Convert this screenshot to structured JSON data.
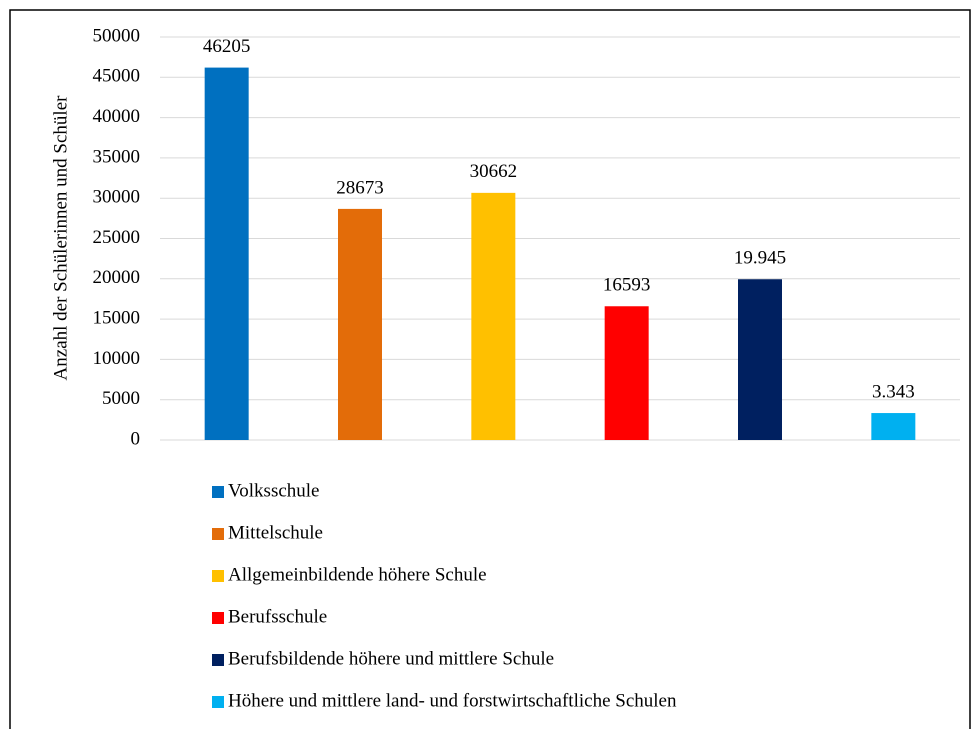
{
  "chart_data": {
    "type": "bar",
    "y_label": "Anzahl der Schülerinnen und Schüler",
    "series": [
      {
        "name": "Volksschule",
        "color": "#0070c0",
        "values": [
          46205
        ],
        "value_labels": [
          "46205"
        ]
      },
      {
        "name": "Mittelschule",
        "color": "#e36c09",
        "values": [
          28673
        ],
        "value_labels": [
          "28673"
        ]
      },
      {
        "name": "Allgemeinbildende höhere Schule",
        "color": "#ffc000",
        "values": [
          30662
        ],
        "value_labels": [
          "30662"
        ]
      },
      {
        "name": "Berufsschule",
        "color": "#ff0000",
        "values": [
          16593
        ],
        "value_labels": [
          "16593"
        ]
      },
      {
        "name": "Berufsbildende höhere und mittlere Schule",
        "color": "#002060",
        "values": [
          19945
        ],
        "value_labels": [
          "19.945"
        ]
      },
      {
        "name": "Höhere und mittlere land- und forstwirtschaftliche Schulen",
        "color": "#00b0f0",
        "values": [
          3343
        ],
        "value_labels": [
          "3.343"
        ]
      }
    ],
    "ylim": [
      0,
      50000
    ],
    "yticks": [
      0,
      5000,
      10000,
      15000,
      20000,
      25000,
      30000,
      35000,
      40000,
      45000,
      50000
    ],
    "grid": true
  }
}
